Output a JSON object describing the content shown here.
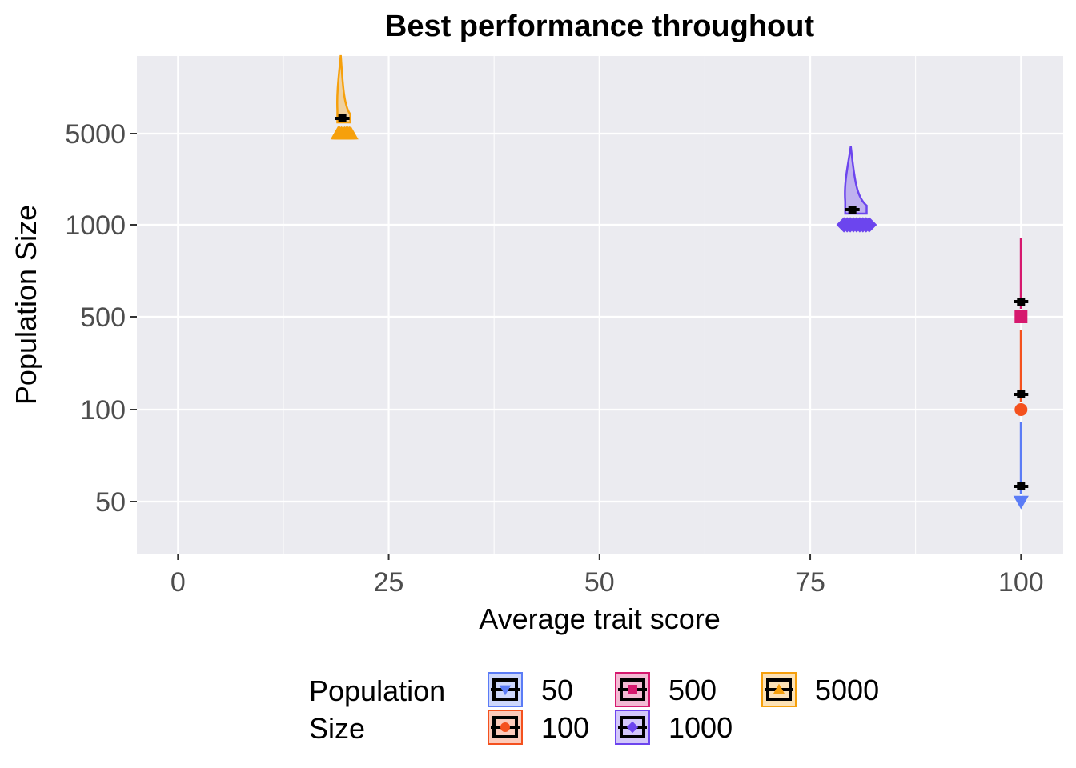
{
  "chart_data": {
    "type": "raincloud",
    "title": "Best performance throughout",
    "xlabel": "Average trait score",
    "ylabel": "Population Size",
    "xlim": [
      -4,
      100
    ],
    "xticks": [
      0,
      25,
      50,
      75,
      100
    ],
    "xtick_labels": [
      "0",
      "25",
      "50",
      "75",
      "100"
    ],
    "yticks": [
      "50",
      "100",
      "500",
      "1000",
      "5000"
    ],
    "y_scale": "categorical",
    "grid": true,
    "legend": {
      "title_line1": "Population",
      "title_line2": "Size",
      "position": "bottom",
      "entries": [
        "50",
        "100",
        "500",
        "1000",
        "5000"
      ]
    },
    "series": [
      {
        "name": "50",
        "color": "#5b7cf6",
        "marker": "triangle-down",
        "median": 100,
        "mean": 100,
        "spread": [
          100,
          100
        ]
      },
      {
        "name": "100",
        "color": "#f4511e",
        "marker": "circle",
        "median": 100,
        "mean": 100,
        "spread": [
          100,
          100
        ]
      },
      {
        "name": "500",
        "color": "#d6186e",
        "marker": "square",
        "median": 100,
        "mean": 100,
        "spread": [
          100,
          100
        ]
      },
      {
        "name": "1000",
        "color": "#6c45ee",
        "marker": "diamond",
        "median": 80,
        "mean": 80,
        "spread": [
          79,
          82
        ]
      },
      {
        "name": "5000",
        "color": "#f6a00c",
        "marker": "triangle-up",
        "median": 19.5,
        "mean": 19.5,
        "spread": [
          19,
          20.5
        ]
      }
    ]
  }
}
